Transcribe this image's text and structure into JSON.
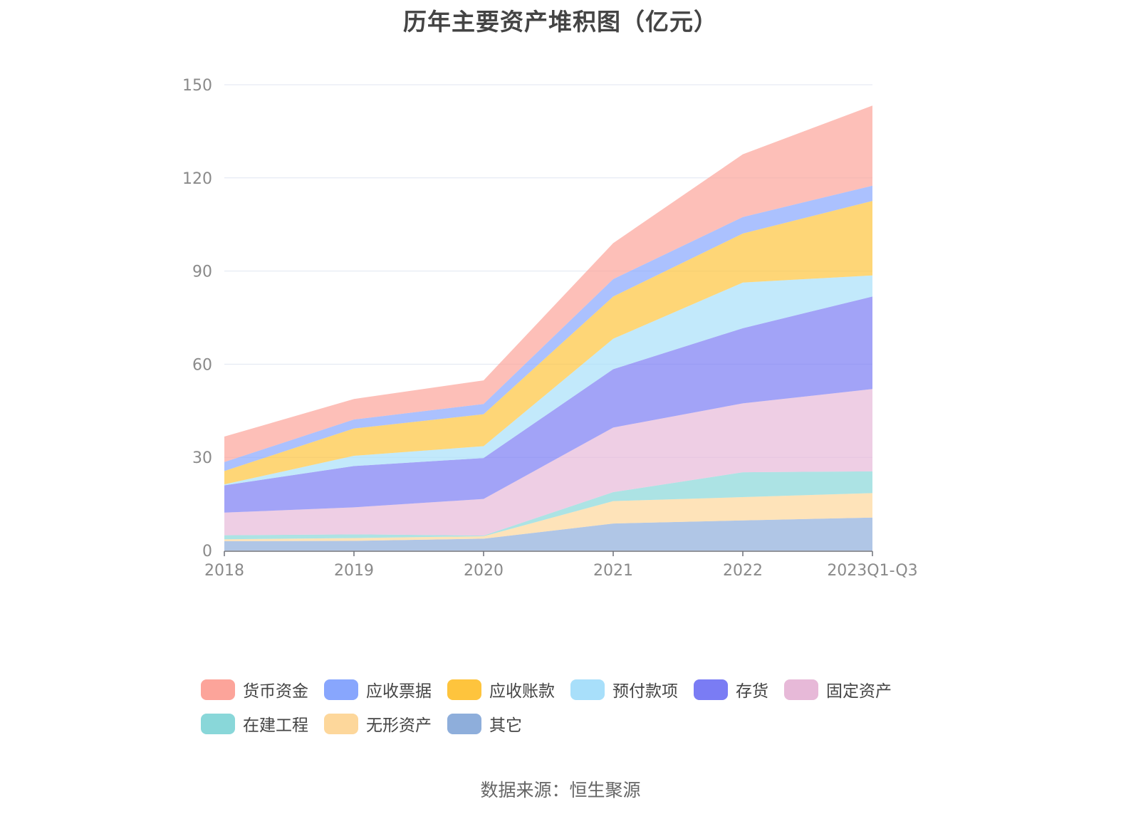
{
  "title": "历年主要资产堆积图（亿元）",
  "source": "数据来源：恒生聚源",
  "chart_data": {
    "type": "area",
    "stacked": true,
    "title": "历年主要资产堆积图（亿元）",
    "xlabel": "",
    "ylabel": "",
    "categories": [
      "2018",
      "2019",
      "2020",
      "2021",
      "2022",
      "2023Q1-Q3"
    ],
    "ylim": [
      0,
      150
    ],
    "yticks": [
      "0",
      "30",
      "60",
      "90",
      "120",
      "150"
    ],
    "ytick_values": [
      0,
      30,
      60,
      90,
      120,
      150
    ],
    "grid": true,
    "legend_position": "bottom",
    "stack_order_bottom_to_top": [
      "其它",
      "无形资产",
      "在建工程",
      "固定资产",
      "存货",
      "预付款项",
      "应收账款",
      "应收票据",
      "货币资金"
    ],
    "series": [
      {
        "name": "货币资金",
        "color": "#fca49a",
        "values": [
          8.2,
          6.6,
          7.6,
          11.6,
          20.2,
          25.8
        ]
      },
      {
        "name": "应收票据",
        "color": "#88a6fd",
        "values": [
          2.9,
          2.9,
          3.3,
          5.6,
          5.3,
          4.9
        ]
      },
      {
        "name": "应收账款",
        "color": "#fec43d",
        "values": [
          4.3,
          8.8,
          10.3,
          13.6,
          15.8,
          24.0
        ]
      },
      {
        "name": "预付款项",
        "color": "#a8dffa",
        "values": [
          0.3,
          3.3,
          3.8,
          9.8,
          14.7,
          6.8
        ]
      },
      {
        "name": "存货",
        "color": "#7a7cf4",
        "values": [
          8.8,
          13.3,
          13.2,
          18.8,
          24.2,
          29.8
        ]
      },
      {
        "name": "固定资产",
        "color": "#e7b9d8",
        "values": [
          7.3,
          8.7,
          11.8,
          20.8,
          22.2,
          26.5
        ]
      },
      {
        "name": "在建工程",
        "color": "#89d7d9",
        "values": [
          1.3,
          1.2,
          0.2,
          2.9,
          8.0,
          7.0
        ]
      },
      {
        "name": "无形资产",
        "color": "#fdd79b",
        "values": [
          0.6,
          0.9,
          0.8,
          7.2,
          7.5,
          7.9
        ]
      },
      {
        "name": "其它",
        "color": "#8eaedb",
        "values": [
          3.0,
          3.1,
          3.8,
          8.7,
          9.7,
          10.6
        ]
      }
    ]
  }
}
